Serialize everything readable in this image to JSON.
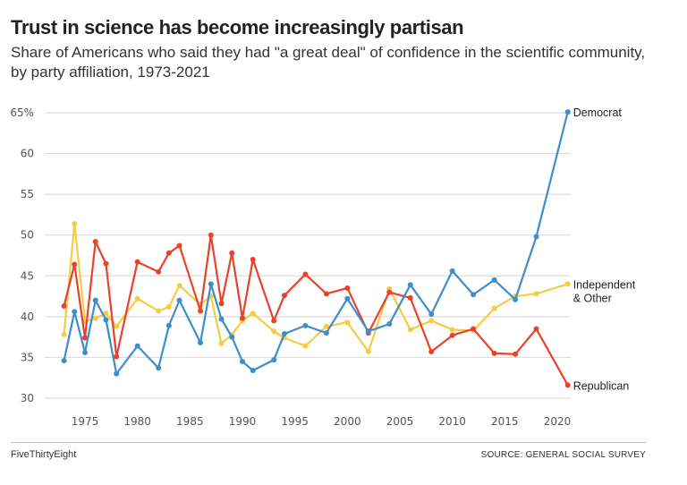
{
  "chart_data": {
    "type": "line",
    "title": "Trust in science has become increasingly partisan",
    "subtitle": "Share of Americans who said they had \"a great deal\" of confidence in the scientific community, by party affiliation, 1973-2021",
    "xlabel": "",
    "ylabel": "",
    "xlim": [
      1973,
      2021
    ],
    "ylim": [
      30,
      65
    ],
    "grid": true,
    "legend": "direct-labels-right",
    "x_ticks": [
      1975,
      1980,
      1985,
      1990,
      1995,
      2000,
      2005,
      2010,
      2015,
      2020
    ],
    "x_tick_labels": [
      "1975",
      "1980",
      "1985",
      "1990",
      "1995",
      "2000",
      "2005",
      "2010",
      "2015",
      "2020"
    ],
    "y_ticks": [
      30,
      35,
      40,
      45,
      50,
      55,
      60,
      65
    ],
    "y_tick_labels": [
      "30",
      "35",
      "40",
      "45",
      "50",
      "55",
      "60",
      "65%"
    ],
    "x": [
      1973,
      1974,
      1975,
      1976,
      1977,
      1978,
      1980,
      1982,
      1983,
      1984,
      1986,
      1987,
      1988,
      1989,
      1990,
      1991,
      1993,
      1994,
      1996,
      1998,
      2000,
      2002,
      2004,
      2006,
      2008,
      2010,
      2012,
      2014,
      2016,
      2018,
      2021
    ],
    "series": [
      {
        "name": "Independent & Other",
        "label_lines": [
          "Independent",
          "& Other"
        ],
        "color": "#f2cd45",
        "values": [
          37.8,
          51.4,
          39.4,
          39.8,
          40.4,
          38.8,
          42.2,
          40.7,
          41.2,
          43.8,
          41.5,
          42.5,
          36.7,
          37.8,
          39.5,
          40.4,
          38.2,
          37.4,
          36.4,
          38.8,
          39.3,
          35.7,
          43.4,
          38.4,
          39.5,
          38.4,
          38.3,
          41.0,
          42.5,
          42.8,
          44.0
        ]
      },
      {
        "name": "Republican",
        "label_lines": [
          "Republican"
        ],
        "color": "#e8412c",
        "values": [
          41.3,
          46.4,
          37.4,
          49.2,
          46.5,
          35.1,
          46.7,
          45.5,
          47.8,
          48.7,
          40.7,
          50.0,
          41.6,
          47.8,
          39.8,
          47.0,
          39.5,
          42.6,
          45.2,
          42.8,
          43.5,
          38.0,
          43.0,
          42.3,
          35.7,
          37.7,
          38.5,
          35.5,
          35.4,
          38.5,
          31.6
        ]
      },
      {
        "name": "Democrat",
        "label_lines": [
          "Democrat"
        ],
        "color": "#3d8ecb",
        "values": [
          34.6,
          40.6,
          35.6,
          42.0,
          39.6,
          33.0,
          36.4,
          33.7,
          38.9,
          42.0,
          36.8,
          44.0,
          39.7,
          37.5,
          34.5,
          33.4,
          34.7,
          37.9,
          38.9,
          38.0,
          42.2,
          38.2,
          39.1,
          43.9,
          40.3,
          45.6,
          42.7,
          44.5,
          42.1,
          49.8,
          65.1
        ]
      }
    ]
  },
  "footer": {
    "brand": "FiveThirtyEight",
    "source": "SOURCE: GENERAL SOCIAL SURVEY"
  }
}
